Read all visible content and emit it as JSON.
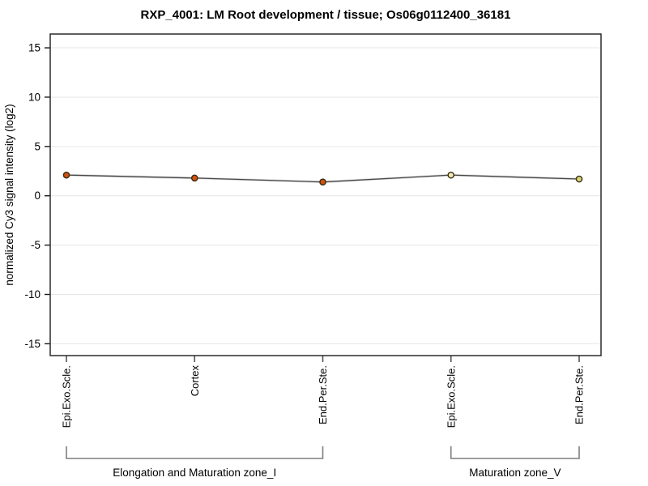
{
  "chart_data": {
    "type": "line",
    "title": "RXP_4001: LM Root development / tissue; Os06g0112400_36181",
    "ylabel": "normalized Cy3 signal intensity (log2)",
    "xlabel": "",
    "categories": [
      "Epi.Exo.Scle.",
      "Cortex",
      "End.Per.Ste.",
      "Epi.Exo.Scle.",
      "End.Per.Ste."
    ],
    "values": [
      2.1,
      1.8,
      1.4,
      2.1,
      1.7
    ],
    "groups": [
      {
        "label": "Elongation and Maturation zone_I",
        "start": 0,
        "end": 2
      },
      {
        "label": "Maturation zone_V",
        "start": 3,
        "end": 4
      }
    ],
    "yticks": [
      15,
      10,
      5,
      0,
      -5,
      -10,
      -15
    ],
    "ylim": [
      -16.2,
      16.4
    ],
    "grid": "horizontal",
    "legend": "none",
    "styles": {
      "line_color": "#4a4a4a",
      "line_halo_color": "#bbbbbb",
      "point_fill_colors": [
        "#d3500e",
        "#d3500e",
        "#d3500e",
        "#f0ecb2",
        "#d6da7a"
      ],
      "point_border_color": "#3a2a10",
      "grid_color": "#e6e6e6",
      "frame_color": "#2a2a2a",
      "y_tick_color": "#1a1a1a",
      "x_tick_color": "#555555",
      "bracket_color": "#7f7f7f",
      "text_color": "#000000",
      "background": "#ffffff"
    }
  }
}
